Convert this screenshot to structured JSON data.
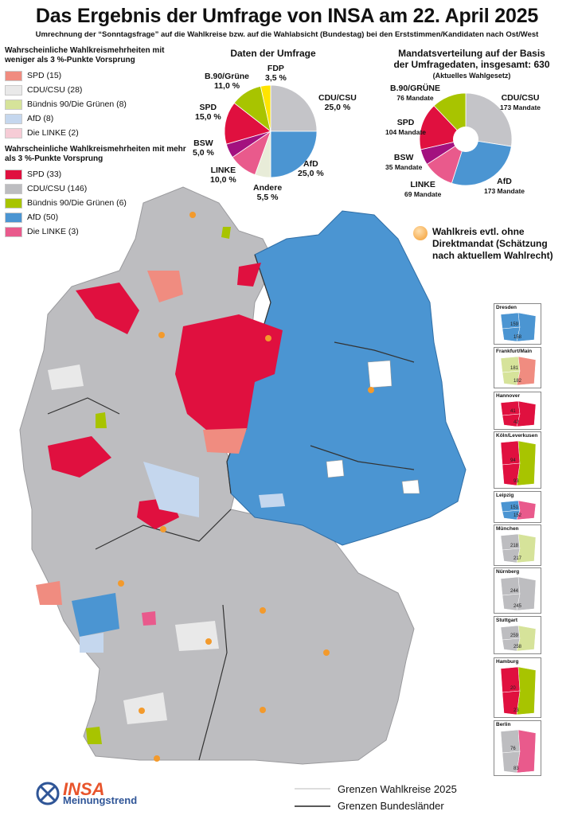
{
  "title": "Das Ergebnis der Umfrage von INSA am 22. April 2025",
  "subtitle": "Umrechnung der “Sonntagsfrage” auf die Wahlkreise bzw. auf die Wahlabsicht (Bundestag) bei den Erststimmen/Kandidaten nach Ost/West",
  "legend": {
    "group1_title": "Wahrscheinliche Wahlkreismehrheiten mit weniger als 3 %-Punkte Vorsprung",
    "group1": [
      {
        "label": "SPD (15)",
        "color": "#f08c80"
      },
      {
        "label": "CDU/CSU (28)",
        "color": "#e9e9e9"
      },
      {
        "label": "Bündnis 90/Die Grünen (8)",
        "color": "#d6e39a"
      },
      {
        "label": "AfD (8)",
        "color": "#c5d7ee"
      },
      {
        "label": "Die LINKE (2)",
        "color": "#f6ccd6"
      }
    ],
    "group2_title": "Wahrscheinliche Wahlkreismehrheiten mit mehr als 3 %-Punkte Vorsprung",
    "group2": [
      {
        "label": "SPD (33)",
        "color": "#e0103f"
      },
      {
        "label": "CDU/CSU (146)",
        "color": "#bdbdc0"
      },
      {
        "label": "Bündnis 90/Die Grünen (6)",
        "color": "#a8c400"
      },
      {
        "label": "AfD (50)",
        "color": "#4b95d2"
      },
      {
        "label": "Die LINKE (3)",
        "color": "#e95a8c"
      }
    ]
  },
  "survey_pie": {
    "title": "Daten der Umfrage",
    "slices": [
      {
        "party": "CDU/CSU",
        "value": 25.0,
        "label": "CDU/CSU",
        "value_text": "25,0 %",
        "color": "#c4c4c8"
      },
      {
        "party": "AfD",
        "value": 25.0,
        "label": "AfD",
        "value_text": "25,0 %",
        "color": "#4b95d2"
      },
      {
        "party": "Andere",
        "value": 5.5,
        "label": "Andere",
        "value_text": "5,5 %",
        "color": "#e8ecd8"
      },
      {
        "party": "LINKE",
        "value": 10.0,
        "label": "LINKE",
        "value_text": "10,0 %",
        "color": "#e95a8c"
      },
      {
        "party": "BSW",
        "value": 5.0,
        "label": "BSW",
        "value_text": "5,0 %",
        "color": "#a3117f"
      },
      {
        "party": "SPD",
        "value": 15.0,
        "label": "SPD",
        "value_text": "15,0 %",
        "color": "#e0103f"
      },
      {
        "party": "B.90/Grüne",
        "value": 11.0,
        "label": "B.90/Grüne",
        "value_text": "11,0 %",
        "color": "#a8c400"
      },
      {
        "party": "FDP",
        "value": 3.5,
        "label": "FDP",
        "value_text": "3,5 %",
        "color": "#ffe400"
      }
    ]
  },
  "seats_pie": {
    "title_line1": "Mandatsverteilung auf der Basis",
    "title_line2": "der Umfragedaten, insgesamt: 630",
    "title_line3": "(Aktuelles Wahlgesetz)",
    "slices": [
      {
        "party": "CDU/CSU",
        "value": 173,
        "label": "CDU/CSU",
        "value_text": "173 Mandate",
        "color": "#c4c4c8"
      },
      {
        "party": "AfD",
        "value": 173,
        "label": "AfD",
        "value_text": "173 Mandate",
        "color": "#4b95d2"
      },
      {
        "party": "LINKE",
        "value": 69,
        "label": "LINKE",
        "value_text": "69 Mandate",
        "color": "#e95a8c"
      },
      {
        "party": "BSW",
        "value": 35,
        "label": "BSW",
        "value_text": "35 Mandate",
        "color": "#a3117f"
      },
      {
        "party": "SPD",
        "value": 104,
        "label": "SPD",
        "value_text": "104 Mandate",
        "color": "#e0103f"
      },
      {
        "party": "B.90/GRÜNE",
        "value": 76,
        "label": "B.90/GRÜNE",
        "value_text": "76 Mandate",
        "color": "#a8c400"
      }
    ]
  },
  "note": "Wahlkreis evtl. ohne Direktmandat (Schätzung nach aktuellem Wahlrecht)",
  "insets": [
    {
      "name": "Dresden",
      "n1": "159",
      "n2": "158"
    },
    {
      "name": "Frankfurt/Main",
      "n1": "181",
      "n2": "182"
    },
    {
      "name": "Hannover",
      "n1": "41",
      "n2": "42"
    },
    {
      "name": "Köln/Leverkusen",
      "n1": "94",
      "n2": "93"
    },
    {
      "name": "Leipzig",
      "n1": "151",
      "n2": "152"
    },
    {
      "name": "München",
      "n1": "218",
      "n2": "217"
    },
    {
      "name": "Nürnberg",
      "n1": "244",
      "n2": "245"
    },
    {
      "name": "Stuttgart",
      "n1": "259",
      "n2": "258"
    },
    {
      "name": "Hamburg",
      "n1": "20",
      "n2": "23"
    },
    {
      "name": "Berlin",
      "n1": "76",
      "n2": "83"
    }
  ],
  "footer": {
    "line1": "Grenzen Wahlkreise 2025",
    "line2": "Grenzen Bundesländer"
  },
  "logo": {
    "brand": "INSA",
    "sub": "Meinungstrend"
  }
}
